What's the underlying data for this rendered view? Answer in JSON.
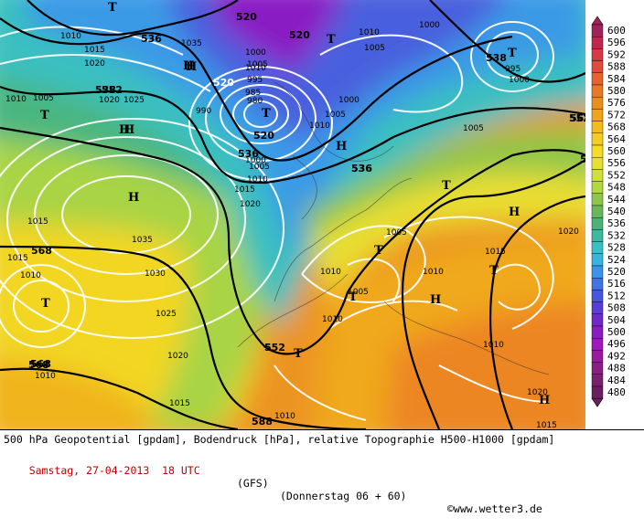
{
  "title": "500 hPa Geopotential [gpdam], Bodendruck [hPa], relative Topographie H500-H1000 [gpdam]",
  "valid_time": "Samstag, 27-04-2013  18 UTC",
  "model": "(GFS)",
  "run_info": "(Donnerstag 06 + 60)",
  "copyright": "©www.wetter3.de",
  "scale": {
    "values": [
      600,
      596,
      592,
      588,
      584,
      580,
      576,
      572,
      568,
      564,
      560,
      556,
      552,
      548,
      544,
      540,
      536,
      532,
      528,
      524,
      520,
      516,
      512,
      508,
      504,
      500,
      496,
      492,
      488,
      484,
      480
    ],
    "colors": [
      "#a0245a",
      "#c4264e",
      "#d83848",
      "#e24a3c",
      "#e86230",
      "#e87a24",
      "#ec8e1e",
      "#f0a41c",
      "#f4ba1e",
      "#f6cc22",
      "#f4dc28",
      "#e8e030",
      "#cfe038",
      "#b2d840",
      "#8ec64a",
      "#68b858",
      "#4ab27a",
      "#3aba9e",
      "#36c2c4",
      "#38b4e0",
      "#3a94e8",
      "#3e74e6",
      "#4656e0",
      "#5a3cd6",
      "#7028cc",
      "#8a1cc4",
      "#a018bc",
      "#9a1a9e",
      "#8a1e86",
      "#7a2070",
      "#6a1e60"
    ]
  },
  "map_labels": {
    "gh": [
      {
        "t": "520",
        "c": "#000000"
      },
      {
        "t": "520",
        "c": "#000000"
      },
      {
        "t": "520",
        "c": "#ffffff"
      },
      {
        "t": "520",
        "c": "#000000"
      },
      {
        "t": "536",
        "c": "#000000"
      },
      {
        "t": "536",
        "c": "#000000"
      },
      {
        "t": "536",
        "c": "#000000"
      },
      {
        "t": "538",
        "c": "#000000"
      },
      {
        "t": "538",
        "c": "#000000"
      },
      {
        "t": "552",
        "c": "#000000"
      },
      {
        "t": "552",
        "c": "#000000"
      },
      {
        "t": "552",
        "c": "#000000"
      },
      {
        "t": "568",
        "c": "#000000"
      },
      {
        "t": "568",
        "c": "#000000"
      },
      {
        "t": "568",
        "c": "#000000"
      },
      {
        "t": "568",
        "c": "#000000"
      },
      {
        "t": "588",
        "c": "#000000"
      },
      {
        "t": "536",
        "c": "#000000"
      },
      {
        "t": "56",
        "c": "#000000"
      }
    ],
    "pressure": [
      "1015",
      "1010",
      "1015",
      "1020",
      "1020",
      "1035",
      "1025",
      "1000",
      "1005",
      "1010",
      "995",
      "990",
      "985",
      "980",
      "1005",
      "1000",
      "995",
      "1000",
      "1010",
      "1005",
      "1000",
      "1005",
      "1010",
      "1015",
      "1020",
      "1035",
      "1030",
      "1025",
      "1020",
      "1015",
      "1010",
      "1015",
      "1010",
      "1020",
      "1010",
      "1005",
      "1010",
      "1005",
      "1010",
      "1015",
      "1010",
      "1020",
      "1015",
      "1010",
      "1005",
      "1010",
      "1000",
      "1005",
      "1010"
    ],
    "highs": [
      "H",
      "H",
      "H",
      "H",
      "H",
      "H",
      "H",
      "H",
      "H"
    ],
    "lows": [
      "T",
      "T",
      "T",
      "T",
      "T",
      "T",
      "T",
      "T",
      "T",
      "T",
      "T"
    ]
  }
}
